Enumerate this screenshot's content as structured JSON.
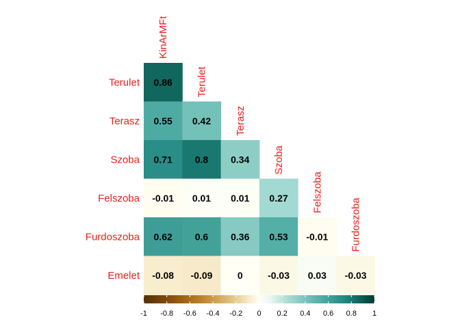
{
  "chart_data": {
    "type": "heatmap",
    "subtype": "lower-triangle correlation matrix",
    "variables": [
      "KinArMFt",
      "Terulet",
      "Terasz",
      "Szoba",
      "Felszoba",
      "Furdoszoba",
      "Emelet"
    ],
    "row_labels": [
      "Terulet",
      "Terasz",
      "Szoba",
      "Felszoba",
      "Furdoszoba",
      "Emelet"
    ],
    "column_labels": [
      "KinArMFt",
      "Terulet",
      "Terasz",
      "Szoba",
      "Felszoba",
      "Furdoszoba"
    ],
    "values": [
      [
        0.86
      ],
      [
        0.55,
        0.42
      ],
      [
        0.71,
        0.8,
        0.34
      ],
      [
        -0.01,
        0.01,
        0.01,
        0.27
      ],
      [
        0.62,
        0.6,
        0.36,
        0.53,
        -0.01
      ],
      [
        -0.08,
        -0.09,
        0,
        -0.03,
        0.03,
        -0.03
      ]
    ],
    "value_labels": [
      [
        "0.86"
      ],
      [
        "0.55",
        "0.42"
      ],
      [
        "0.71",
        "0.8",
        "0.34"
      ],
      [
        "-0.01",
        "0.01",
        "0.01",
        "0.27"
      ],
      [
        "0.62",
        "0.6",
        "0.36",
        "0.53",
        "-0.01"
      ],
      [
        "-0.08",
        "-0.09",
        "0",
        "-0.03",
        "0.03",
        "-0.03"
      ]
    ],
    "color_scale": {
      "range": [
        -1,
        1
      ],
      "stops": [
        {
          "value": -1,
          "color": "#543005"
        },
        {
          "value": -0.75,
          "color": "#8c510a"
        },
        {
          "value": -0.5,
          "color": "#bf812d"
        },
        {
          "value": -0.25,
          "color": "#dfc27d"
        },
        {
          "value": -0.1,
          "color": "#f6e8c3"
        },
        {
          "value": 0,
          "color": "#fffff5"
        },
        {
          "value": 0.1,
          "color": "#e7f6f3"
        },
        {
          "value": 0.25,
          "color": "#a8dcd5"
        },
        {
          "value": 0.5,
          "color": "#5ab4ac"
        },
        {
          "value": 0.75,
          "color": "#1f8780"
        },
        {
          "value": 1,
          "color": "#003c30"
        }
      ],
      "ticks": [
        "-1",
        "-0.8",
        "-0.6",
        "-0.4",
        "-0.2",
        "0",
        "0.2",
        "0.4",
        "0.6",
        "0.8",
        "1"
      ],
      "legend_position": "bottom"
    },
    "label_color": "#e8201c"
  }
}
